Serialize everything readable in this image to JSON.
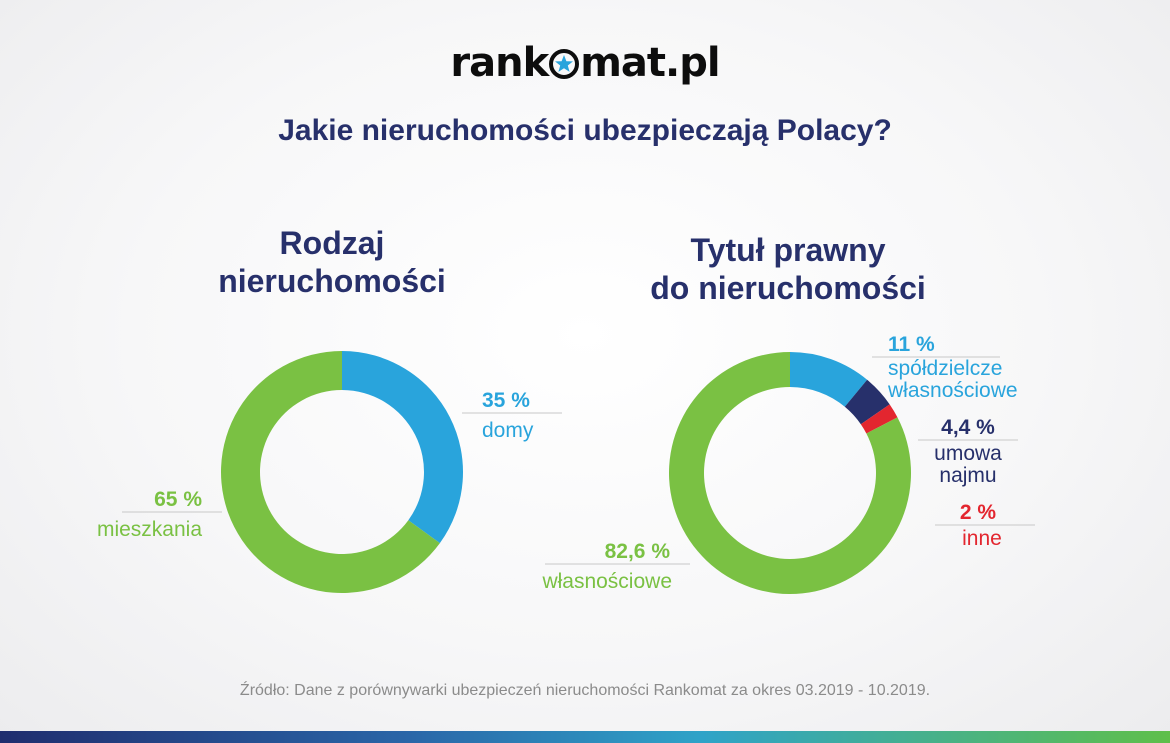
{
  "logo": {
    "text_before": "rank",
    "text_after": "mat.pl"
  },
  "headline": "Jakie nieruchomości ubezpieczają Polacy?",
  "colors": {
    "title": "#27306b",
    "green": "#7ac143",
    "blue": "#29a4dc",
    "navy": "#27306b",
    "red": "#e3262f"
  },
  "chart_data": [
    {
      "type": "pie",
      "title": [
        "Rodzaj",
        "nieruchomości"
      ],
      "slices": [
        {
          "label": "domy",
          "value": 35,
          "value_text": "35 %",
          "color": "#29a4dc"
        },
        {
          "label": "mieszkania",
          "value": 65,
          "value_text": "65 %",
          "color": "#7ac143"
        }
      ]
    },
    {
      "type": "pie",
      "title": [
        "Tytuł prawny",
        "do nieruchomości"
      ],
      "slices": [
        {
          "label": "spółdzielcze własnościowe",
          "label_lines": [
            "spółdzielcze",
            "własnościowe"
          ],
          "value": 11,
          "value_text": "11 %",
          "color": "#29a4dc"
        },
        {
          "label": "umowa najmu",
          "label_lines": [
            "umowa",
            "najmu"
          ],
          "value": 4.4,
          "value_text": "4,4 %",
          "color": "#27306b"
        },
        {
          "label": "inne",
          "label_lines": [
            "inne"
          ],
          "value": 2,
          "value_text": "2 %",
          "color": "#e3262f"
        },
        {
          "label": "własnościowe",
          "label_lines": [
            "własnościowe"
          ],
          "value": 82.6,
          "value_text": "82,6 %",
          "color": "#7ac143"
        }
      ]
    }
  ],
  "source": "Źródło: Dane z porównywarki ubezpieczeń nieruchomości Rankomat za okres 03.2019 - 10.2019."
}
